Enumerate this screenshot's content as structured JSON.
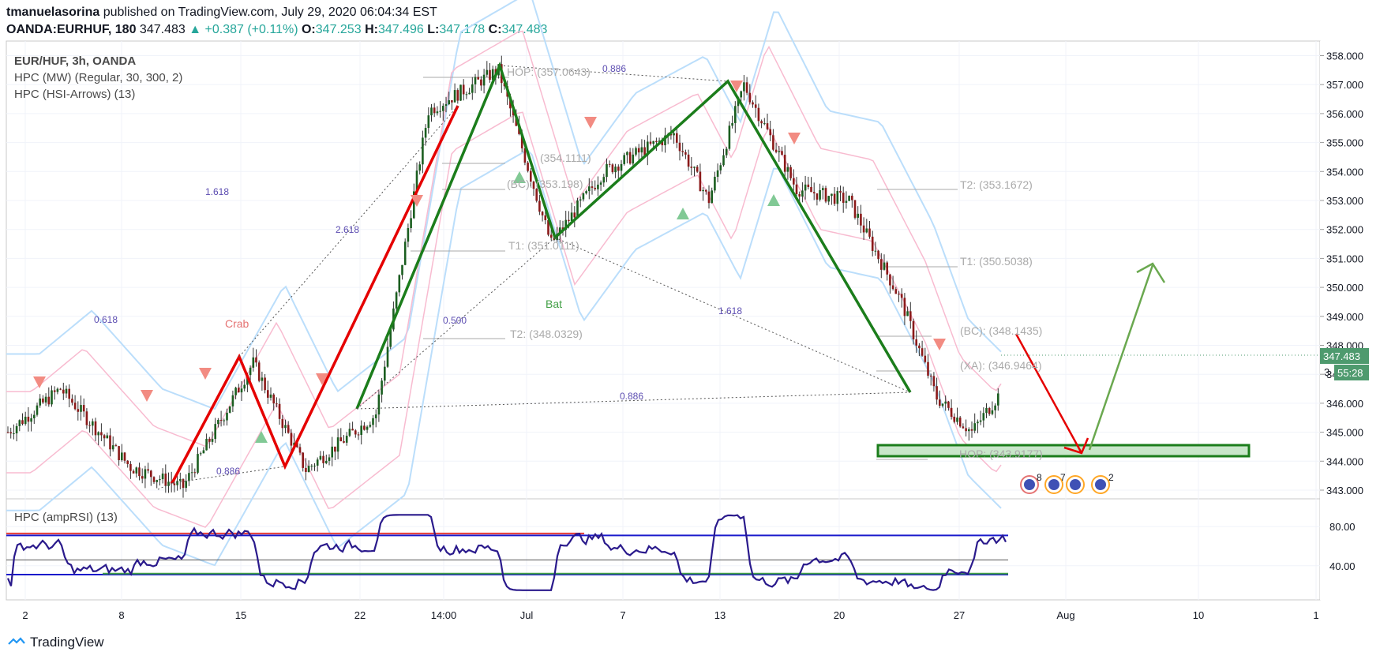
{
  "header": {
    "author": "tmanuelasorina",
    "published_text": "published on TradingView.com, July 29, 2020 06:04:34 EST"
  },
  "quote": {
    "symbol": "OANDA:EURHUF, 180",
    "last": "347.483",
    "change": "+0.387 (+0.11%)",
    "o_label": "O:",
    "o": "347.253",
    "h_label": "H:",
    "h": "347.496",
    "l_label": "L:",
    "l": "347.178",
    "c_label": "C:",
    "c": "347.483",
    "up_color": "#26a69a"
  },
  "legend": {
    "line1": "EUR/HUF, 3h, OANDA",
    "line2": "HPC (MW) (Regular, 30, 300, 2)",
    "line3": "HPC (HSI-Arrows) (13)"
  },
  "rsi_legend": "HPC (ampRSI) (13)",
  "footer": {
    "brand": "TradingView"
  },
  "price_badges": {
    "price": "347.483",
    "countdown": "55:28",
    "partial_hidden": "3"
  },
  "annotations": {
    "crab": "Crab",
    "bat": "Bat",
    "fib_labels": [
      "1.618",
      "2.618",
      "0.618",
      "0.886",
      "0.500",
      "1.618",
      "0.886",
      "0.886"
    ],
    "levels": [
      "HOP: (357.0643)",
      "(354.1111)",
      "(BC): (353.198)",
      "T1: (351.0111)",
      "T2: (348.0329)",
      "T2: (353.1672)",
      "T1: (350.5038)",
      "(BC): (348.1435)",
      "(XA): (346.9464)",
      "HOP: (343.9177)"
    ],
    "event_counts": [
      "8",
      "7",
      "2"
    ]
  },
  "chart_data": [
    {
      "type": "candlestick",
      "title": "EUR/HUF, 3h, OANDA",
      "x_tick_labels": [
        "2",
        "8",
        "15",
        "22",
        "14:00",
        "Jul",
        "7",
        "13",
        "20",
        "27",
        "Aug",
        "10",
        "1"
      ],
      "y_ticks": [
        343.0,
        344.0,
        345.0,
        346.0,
        347.0,
        348.0,
        349.0,
        350.0,
        351.0,
        352.0,
        353.0,
        354.0,
        355.0,
        356.0,
        357.0,
        358.0
      ],
      "ylim": [
        342.5,
        358.3
      ],
      "last_price": 347.483,
      "key_points": [
        {
          "x": "Jun 11",
          "y": 343.1
        },
        {
          "x": "Jun 15",
          "y": 347.4
        },
        {
          "x": "Jun 18",
          "y": 343.7
        },
        {
          "x": "Jun 25",
          "y": 356.1
        },
        {
          "x": "Jun 22",
          "y": 345.6
        },
        {
          "x": "Jun 29",
          "y": 357.5
        },
        {
          "x": "Jul 2",
          "y": 351.5
        },
        {
          "x": "Jul 13",
          "y": 357.0
        },
        {
          "x": "Jul 24",
          "y": 346.2
        },
        {
          "x": "Jul 26",
          "y": 345.0
        },
        {
          "x": "Jul 29",
          "y": 347.5
        }
      ],
      "zone": {
        "low": 344.0,
        "high": 344.4
      },
      "projection": [
        {
          "x": "Jul 29",
          "y": 348.2
        },
        {
          "x": "Aug 3",
          "y": 344.0
        },
        {
          "x": "Aug 7",
          "y": 350.6
        }
      ],
      "colors": {
        "up": "#26a69a",
        "down": "#ef5350",
        "candle_body_up": "#1b5e20",
        "candle_body_down": "#8b1a1a",
        "pattern_green": "#1b7d1b",
        "pattern_red": "#e50000",
        "zone": "#c8e6c9",
        "band_blue": "#bbdefb",
        "band_red": "#f8bbd0"
      }
    },
    {
      "type": "line",
      "title": "HPC (ampRSI) (13)",
      "y_ticks": [
        40.0,
        80.0
      ],
      "ylim": [
        10,
        98
      ],
      "series": [
        {
          "name": "HPC (ampRSI) (13)",
          "color": "#2a1a8c"
        }
      ],
      "levels": [
        {
          "y": 71,
          "color": "#1a1acc"
        },
        {
          "y": 46,
          "color": "#555555"
        },
        {
          "y": 31,
          "color": "#1a1acc"
        },
        {
          "y": 32,
          "color": "#43a047"
        },
        {
          "y": 73,
          "color": "#e53935"
        }
      ]
    }
  ]
}
